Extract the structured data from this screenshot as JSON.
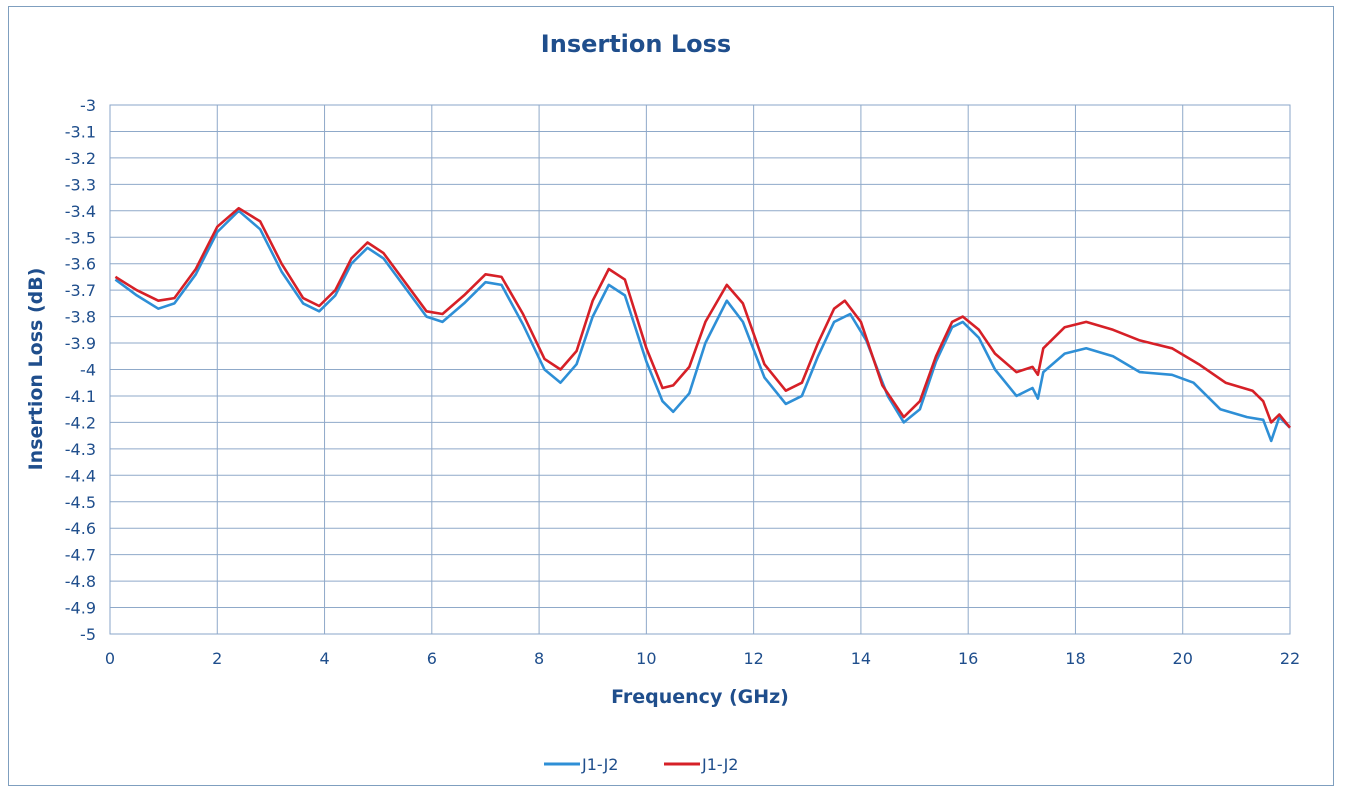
{
  "chart_data": {
    "type": "line",
    "title": "Insertion Loss",
    "xlabel": "Frequency (GHz)",
    "ylabel": "Insertion Loss (dB)",
    "xlim": [
      0,
      22
    ],
    "ylim": [
      -5,
      -3
    ],
    "x_ticks": [
      "0",
      "2",
      "4",
      "6",
      "8",
      "10",
      "12",
      "14",
      "16",
      "18",
      "20",
      "22"
    ],
    "y_ticks": [
      "-3",
      "-3.1",
      "-3.2",
      "-3.3",
      "-3.4",
      "-3.5",
      "-3.6",
      "-3.7",
      "-3.8",
      "-3.9",
      "-4",
      "-4.1",
      "-4.2",
      "-4.3",
      "-4.4",
      "-4.5",
      "-4.6",
      "-4.7",
      "-4.8",
      "-4.9",
      "-5"
    ],
    "grid": true,
    "legend_position": "bottom",
    "series": [
      {
        "name": "J1-J2",
        "color": "#2e8fd6",
        "points": [
          [
            0.1,
            -3.66
          ],
          [
            0.5,
            -3.72
          ],
          [
            0.9,
            -3.77
          ],
          [
            1.2,
            -3.75
          ],
          [
            1.6,
            -3.64
          ],
          [
            2.0,
            -3.48
          ],
          [
            2.4,
            -3.4
          ],
          [
            2.8,
            -3.47
          ],
          [
            3.2,
            -3.63
          ],
          [
            3.6,
            -3.75
          ],
          [
            3.9,
            -3.78
          ],
          [
            4.2,
            -3.72
          ],
          [
            4.5,
            -3.6
          ],
          [
            4.8,
            -3.54
          ],
          [
            5.1,
            -3.58
          ],
          [
            5.5,
            -3.69
          ],
          [
            5.9,
            -3.8
          ],
          [
            6.2,
            -3.82
          ],
          [
            6.6,
            -3.75
          ],
          [
            7.0,
            -3.67
          ],
          [
            7.3,
            -3.68
          ],
          [
            7.7,
            -3.83
          ],
          [
            8.1,
            -4.0
          ],
          [
            8.4,
            -4.05
          ],
          [
            8.7,
            -3.98
          ],
          [
            9.0,
            -3.8
          ],
          [
            9.3,
            -3.68
          ],
          [
            9.6,
            -3.72
          ],
          [
            10.0,
            -3.97
          ],
          [
            10.3,
            -4.12
          ],
          [
            10.5,
            -4.16
          ],
          [
            10.8,
            -4.09
          ],
          [
            11.1,
            -3.9
          ],
          [
            11.5,
            -3.74
          ],
          [
            11.8,
            -3.82
          ],
          [
            12.2,
            -4.03
          ],
          [
            12.6,
            -4.13
          ],
          [
            12.9,
            -4.1
          ],
          [
            13.2,
            -3.95
          ],
          [
            13.5,
            -3.82
          ],
          [
            13.8,
            -3.79
          ],
          [
            14.1,
            -3.89
          ],
          [
            14.5,
            -4.1
          ],
          [
            14.8,
            -4.2
          ],
          [
            15.1,
            -4.15
          ],
          [
            15.4,
            -3.97
          ],
          [
            15.7,
            -3.84
          ],
          [
            15.9,
            -3.82
          ],
          [
            16.2,
            -3.88
          ],
          [
            16.5,
            -4.0
          ],
          [
            16.9,
            -4.1
          ],
          [
            17.2,
            -4.07
          ],
          [
            17.3,
            -4.11
          ],
          [
            17.4,
            -4.01
          ],
          [
            17.8,
            -3.94
          ],
          [
            18.2,
            -3.92
          ],
          [
            18.7,
            -3.95
          ],
          [
            19.2,
            -4.01
          ],
          [
            19.8,
            -4.02
          ],
          [
            20.2,
            -4.05
          ],
          [
            20.7,
            -4.15
          ],
          [
            21.2,
            -4.18
          ],
          [
            21.5,
            -4.19
          ],
          [
            21.65,
            -4.27
          ],
          [
            21.8,
            -4.18
          ],
          [
            22.0,
            -4.22
          ]
        ]
      },
      {
        "name": "J1-J2",
        "color": "#d62027",
        "points": [
          [
            0.1,
            -3.65
          ],
          [
            0.5,
            -3.7
          ],
          [
            0.9,
            -3.74
          ],
          [
            1.2,
            -3.73
          ],
          [
            1.6,
            -3.62
          ],
          [
            2.0,
            -3.46
          ],
          [
            2.4,
            -3.39
          ],
          [
            2.8,
            -3.44
          ],
          [
            3.2,
            -3.6
          ],
          [
            3.6,
            -3.73
          ],
          [
            3.9,
            -3.76
          ],
          [
            4.2,
            -3.7
          ],
          [
            4.5,
            -3.58
          ],
          [
            4.8,
            -3.52
          ],
          [
            5.1,
            -3.56
          ],
          [
            5.5,
            -3.67
          ],
          [
            5.9,
            -3.78
          ],
          [
            6.2,
            -3.79
          ],
          [
            6.6,
            -3.72
          ],
          [
            7.0,
            -3.64
          ],
          [
            7.3,
            -3.65
          ],
          [
            7.7,
            -3.79
          ],
          [
            8.1,
            -3.96
          ],
          [
            8.4,
            -4.0
          ],
          [
            8.7,
            -3.93
          ],
          [
            9.0,
            -3.74
          ],
          [
            9.3,
            -3.62
          ],
          [
            9.6,
            -3.66
          ],
          [
            10.0,
            -3.92
          ],
          [
            10.3,
            -4.07
          ],
          [
            10.5,
            -4.06
          ],
          [
            10.8,
            -3.99
          ],
          [
            11.1,
            -3.82
          ],
          [
            11.5,
            -3.68
          ],
          [
            11.8,
            -3.75
          ],
          [
            12.2,
            -3.98
          ],
          [
            12.6,
            -4.08
          ],
          [
            12.9,
            -4.05
          ],
          [
            13.2,
            -3.9
          ],
          [
            13.5,
            -3.77
          ],
          [
            13.7,
            -3.74
          ],
          [
            14.0,
            -3.82
          ],
          [
            14.4,
            -4.06
          ],
          [
            14.8,
            -4.18
          ],
          [
            15.1,
            -4.12
          ],
          [
            15.4,
            -3.95
          ],
          [
            15.7,
            -3.82
          ],
          [
            15.9,
            -3.8
          ],
          [
            16.2,
            -3.85
          ],
          [
            16.5,
            -3.94
          ],
          [
            16.9,
            -4.01
          ],
          [
            17.2,
            -3.99
          ],
          [
            17.3,
            -4.02
          ],
          [
            17.4,
            -3.92
          ],
          [
            17.8,
            -3.84
          ],
          [
            18.2,
            -3.82
          ],
          [
            18.7,
            -3.85
          ],
          [
            19.2,
            -3.89
          ],
          [
            19.8,
            -3.92
          ],
          [
            20.3,
            -3.98
          ],
          [
            20.8,
            -4.05
          ],
          [
            21.3,
            -4.08
          ],
          [
            21.5,
            -4.12
          ],
          [
            21.65,
            -4.2
          ],
          [
            21.8,
            -4.17
          ],
          [
            22.0,
            -4.22
          ]
        ]
      }
    ]
  }
}
